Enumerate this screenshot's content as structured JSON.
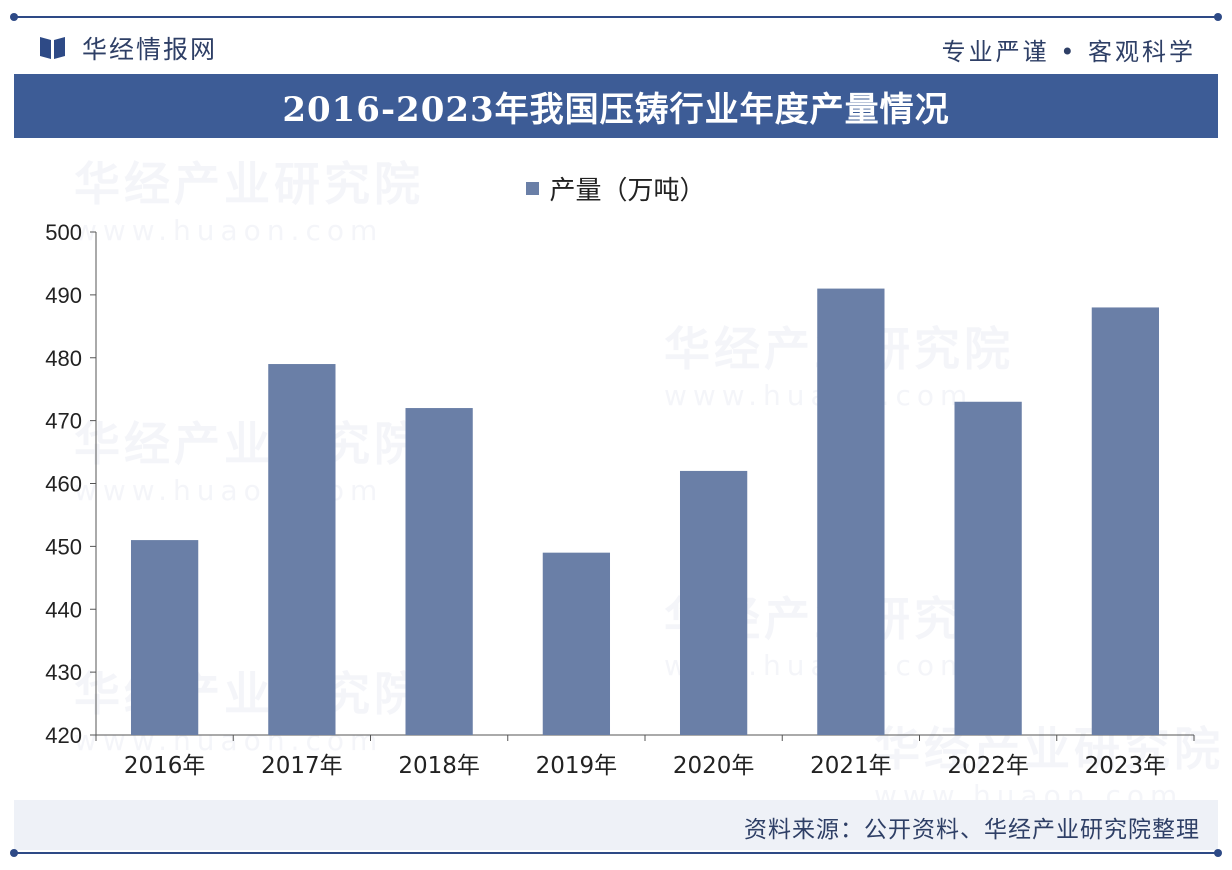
{
  "header": {
    "brand_name": "华经情报网",
    "slogan": "专业严谨 • 客观科学"
  },
  "title": "2016-2023年我国压铸行业年度产量情况",
  "watermark": {
    "text": "华经产业研究院",
    "url": "www.huaon.com"
  },
  "colors": {
    "title_bar": "#3d5c96",
    "bar": "#6a7fa7",
    "accent_line": "#2e4a86",
    "footer_bg": "#eef1f7"
  },
  "chart_data": {
    "type": "bar",
    "categories": [
      "2016年",
      "2017年",
      "2018年",
      "2019年",
      "2020年",
      "2021年",
      "2022年",
      "2023年"
    ],
    "series": [
      {
        "name": "产量（万吨）",
        "values": [
          451,
          479,
          472,
          449,
          462,
          491,
          473,
          488
        ]
      }
    ],
    "ylim": [
      420,
      500
    ],
    "yticks": [
      420,
      430,
      440,
      450,
      460,
      470,
      480,
      490,
      500
    ],
    "xlabel": "",
    "ylabel": "",
    "grid": false,
    "legend_position": "top-center"
  },
  "footer": {
    "source": "资料来源：公开资料、华经产业研究院整理"
  }
}
